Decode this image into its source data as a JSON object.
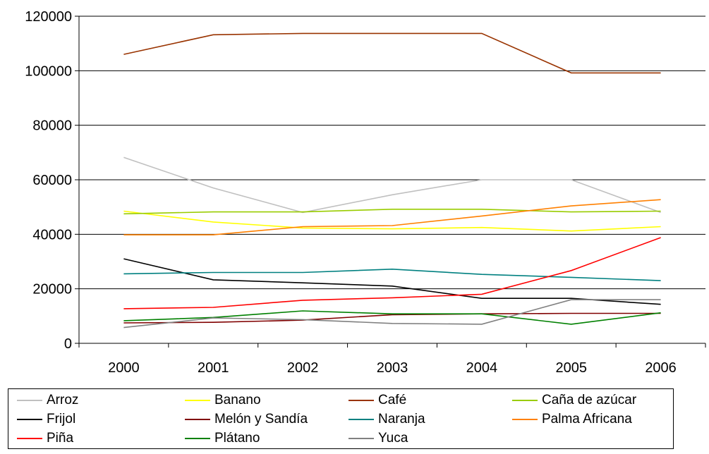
{
  "chart_data": {
    "type": "line",
    "title": "",
    "xlabel": "",
    "ylabel": "",
    "categories": [
      "2000",
      "2001",
      "2002",
      "2003",
      "2004",
      "2005",
      "2006"
    ],
    "ylim": [
      0,
      120000
    ],
    "yticks": [
      0,
      20000,
      40000,
      60000,
      80000,
      100000,
      120000
    ],
    "ytick_labels": [
      "0",
      "20000",
      "40000",
      "60000",
      "80000",
      "100000",
      "120000"
    ],
    "grid": "horizontal",
    "legend_position": "bottom",
    "series": [
      {
        "name": "Arroz",
        "color": "#c0c0c0",
        "values": [
          68200,
          57000,
          48000,
          54500,
          60000,
          60000,
          48000
        ]
      },
      {
        "name": "Banano",
        "color": "#ffff00",
        "values": [
          48500,
          44500,
          42300,
          42000,
          42500,
          41200,
          42800
        ]
      },
      {
        "name": "Café",
        "color": "#993300",
        "values": [
          106000,
          113200,
          113700,
          113700,
          113700,
          99200,
          99200
        ]
      },
      {
        "name": "Caña de azúcar",
        "color": "#99cc00",
        "values": [
          47500,
          48200,
          48200,
          49200,
          49200,
          48200,
          48500
        ]
      },
      {
        "name": "Frijol",
        "color": "#000000",
        "values": [
          31000,
          23300,
          22200,
          21000,
          16500,
          16500,
          14300
        ]
      },
      {
        "name": "Melón y Sandía",
        "color": "#800000",
        "values": [
          7500,
          7700,
          8500,
          10500,
          10800,
          11000,
          11000
        ]
      },
      {
        "name": "Naranja",
        "color": "#008080",
        "values": [
          25500,
          26000,
          26000,
          27200,
          25300,
          24200,
          23000
        ]
      },
      {
        "name": "Palma Africana",
        "color": "#ff8000",
        "values": [
          39800,
          39800,
          42800,
          43200,
          46700,
          50400,
          52700
        ]
      },
      {
        "name": "Piña",
        "color": "#ff0000",
        "values": [
          12700,
          13200,
          15800,
          16700,
          18000,
          26700,
          38800
        ]
      },
      {
        "name": "Plátano",
        "color": "#008000",
        "values": [
          8300,
          9500,
          11900,
          10800,
          10800,
          7000,
          11200
        ]
      },
      {
        "name": "Yuca",
        "color": "#808080",
        "values": [
          5800,
          9300,
          8700,
          7300,
          7000,
          16000,
          16000
        ]
      }
    ]
  }
}
